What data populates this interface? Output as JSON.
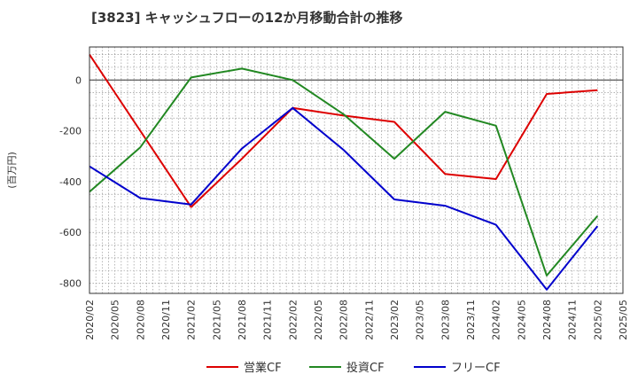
{
  "chart_data": {
    "type": "line",
    "title": "[3823]  キャッシュフローの12か月移動合計の推移",
    "ylabel": "(百万円)",
    "xlabel": "",
    "categories": [
      "2020/02",
      "2020/05",
      "2020/08",
      "2020/11",
      "2021/02",
      "2021/05",
      "2021/08",
      "2021/11",
      "2022/02",
      "2022/05",
      "2022/08",
      "2022/11",
      "2023/02",
      "2023/05",
      "2023/08",
      "2023/11",
      "2024/02",
      "2024/05",
      "2024/08",
      "2024/11",
      "2025/02",
      "2025/05"
    ],
    "ylim": [
      -840,
      130
    ],
    "yticks": [
      0,
      -200,
      -400,
      -600,
      -800
    ],
    "series": [
      {
        "name": "営業CF",
        "color": "#dd0000",
        "values": [
          100,
          null,
          -200,
          null,
          -500,
          null,
          -310,
          null,
          -110,
          null,
          -140,
          null,
          -165,
          null,
          -370,
          null,
          -390,
          null,
          -55,
          null,
          -40,
          null
        ]
      },
      {
        "name": "投資CF",
        "color": "#228822",
        "values": [
          -440,
          null,
          -265,
          null,
          10,
          null,
          45,
          null,
          0,
          null,
          -135,
          null,
          -310,
          null,
          -125,
          null,
          -180,
          null,
          -770,
          null,
          -535,
          null
        ]
      },
      {
        "name": "フリーCF",
        "color": "#0000cc",
        "values": [
          -340,
          null,
          -465,
          null,
          -490,
          null,
          -270,
          null,
          -110,
          null,
          -275,
          null,
          -470,
          null,
          -495,
          null,
          -570,
          null,
          -825,
          null,
          -575,
          null
        ]
      }
    ]
  }
}
